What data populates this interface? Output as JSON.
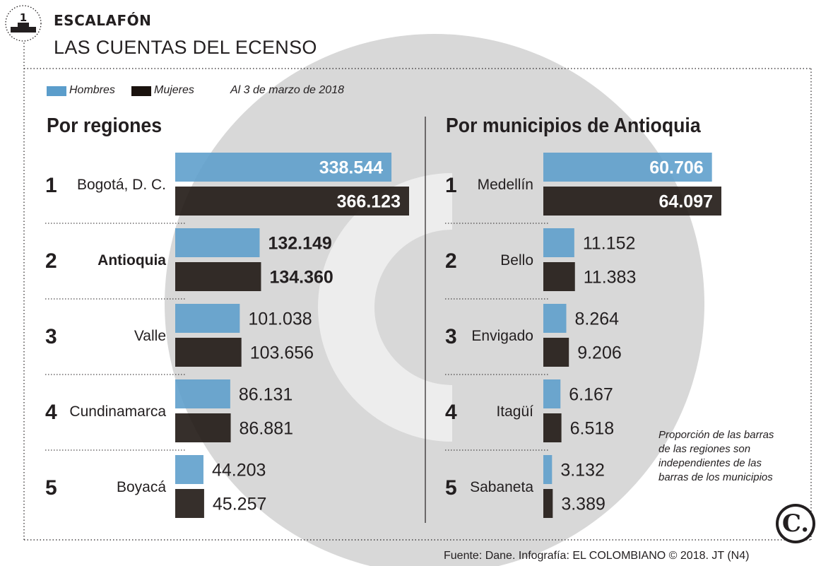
{
  "header": {
    "rank_icon_number": "1",
    "kicker": "ESCALAFÓN",
    "title": "LAS CUENTAS DEL ECENSO"
  },
  "legend": {
    "men_label": "Hombres",
    "women_label": "Mujeres",
    "date_note": "Al 3 de marzo de 2018"
  },
  "colors": {
    "men": "#5b9dcb",
    "women": "#1a120e",
    "watermark": "#d8d8d8",
    "text": "#231f20"
  },
  "note": [
    "Proporción de las barras",
    "de las regiones son",
    "independientes de las",
    "barras de los municipios"
  ],
  "source": "Fuente: Dane. Infografía: EL COLOMBIANO © 2018. JT (N4)",
  "logo_letter": "C.",
  "chart_data": [
    {
      "type": "bar",
      "title": "Por regiones",
      "categories": [
        "Bogotá, D. C.",
        "Antioquia",
        "Valle",
        "Cundinamarca",
        "Boyacá"
      ],
      "ranks": [
        "1",
        "2",
        "3",
        "4",
        "5"
      ],
      "highlight": "Antioquia",
      "series": [
        {
          "name": "Hombres",
          "values": [
            338544,
            132149,
            101038,
            86131,
            44203
          ],
          "labels": [
            "338.544",
            "132.149",
            "101.038",
            "86.131",
            "44.203"
          ]
        },
        {
          "name": "Mujeres",
          "values": [
            366123,
            134360,
            103656,
            86881,
            45257
          ],
          "labels": [
            "366.123",
            "134.360",
            "103.656",
            "86.881",
            "45.257"
          ]
        }
      ]
    },
    {
      "type": "bar",
      "title": "Por municipios de Antioquia",
      "categories": [
        "Medellín",
        "Bello",
        "Envigado",
        "Itagüí",
        "Sabaneta"
      ],
      "ranks": [
        "1",
        "2",
        "3",
        "4",
        "5"
      ],
      "series": [
        {
          "name": "Hombres",
          "values": [
            60706,
            11152,
            8264,
            6167,
            3132
          ],
          "labels": [
            "60.706",
            "11.152",
            "8.264",
            "6.167",
            "3.132"
          ]
        },
        {
          "name": "Mujeres",
          "values": [
            64097,
            11383,
            9206,
            6518,
            3389
          ],
          "labels": [
            "64.097",
            "11.383",
            "9.206",
            "6.518",
            "3.389"
          ]
        }
      ]
    }
  ]
}
